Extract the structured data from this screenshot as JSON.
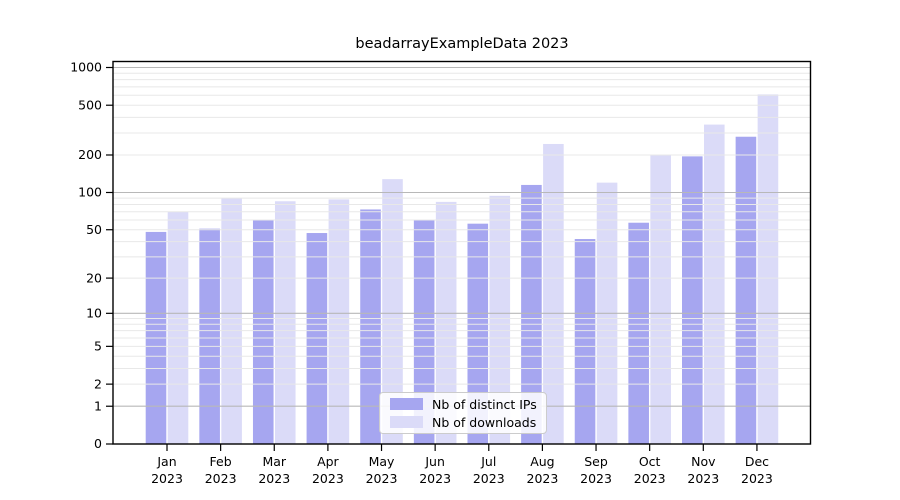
{
  "chart_data": {
    "type": "bar",
    "title": "beadarrayExampleData 2023",
    "categories": [
      {
        "month": "Jan",
        "year": "2023"
      },
      {
        "month": "Feb",
        "year": "2023"
      },
      {
        "month": "Mar",
        "year": "2023"
      },
      {
        "month": "Apr",
        "year": "2023"
      },
      {
        "month": "May",
        "year": "2023"
      },
      {
        "month": "Jun",
        "year": "2023"
      },
      {
        "month": "Jul",
        "year": "2023"
      },
      {
        "month": "Aug",
        "year": "2023"
      },
      {
        "month": "Sep",
        "year": "2023"
      },
      {
        "month": "Oct",
        "year": "2023"
      },
      {
        "month": "Nov",
        "year": "2023"
      },
      {
        "month": "Dec",
        "year": "2023"
      }
    ],
    "series": [
      {
        "name": "Nb of distinct IPs",
        "color": "#a6a6f0",
        "values": [
          48,
          51,
          60,
          47,
          73,
          60,
          56,
          115,
          42,
          57,
          195,
          280
        ]
      },
      {
        "name": "Nb of downloads",
        "color": "#dbdbf8",
        "values": [
          70,
          90,
          85,
          88,
          128,
          84,
          94,
          245,
          120,
          200,
          350,
          610
        ]
      }
    ],
    "y_axis": {
      "scale": "log1p",
      "ticks": [
        0,
        1,
        2,
        5,
        10,
        20,
        50,
        100,
        200,
        500,
        1000
      ],
      "range": [
        0,
        1000
      ]
    },
    "grid": {
      "major_values": [
        1,
        10,
        100,
        1000
      ],
      "major_color": "#b8b8b8",
      "minor_color": "#e8e8e8",
      "drawn_over_bars": true
    },
    "legend_position": "bottom-center",
    "background": "#ffffff",
    "axis_color": "#000000"
  }
}
